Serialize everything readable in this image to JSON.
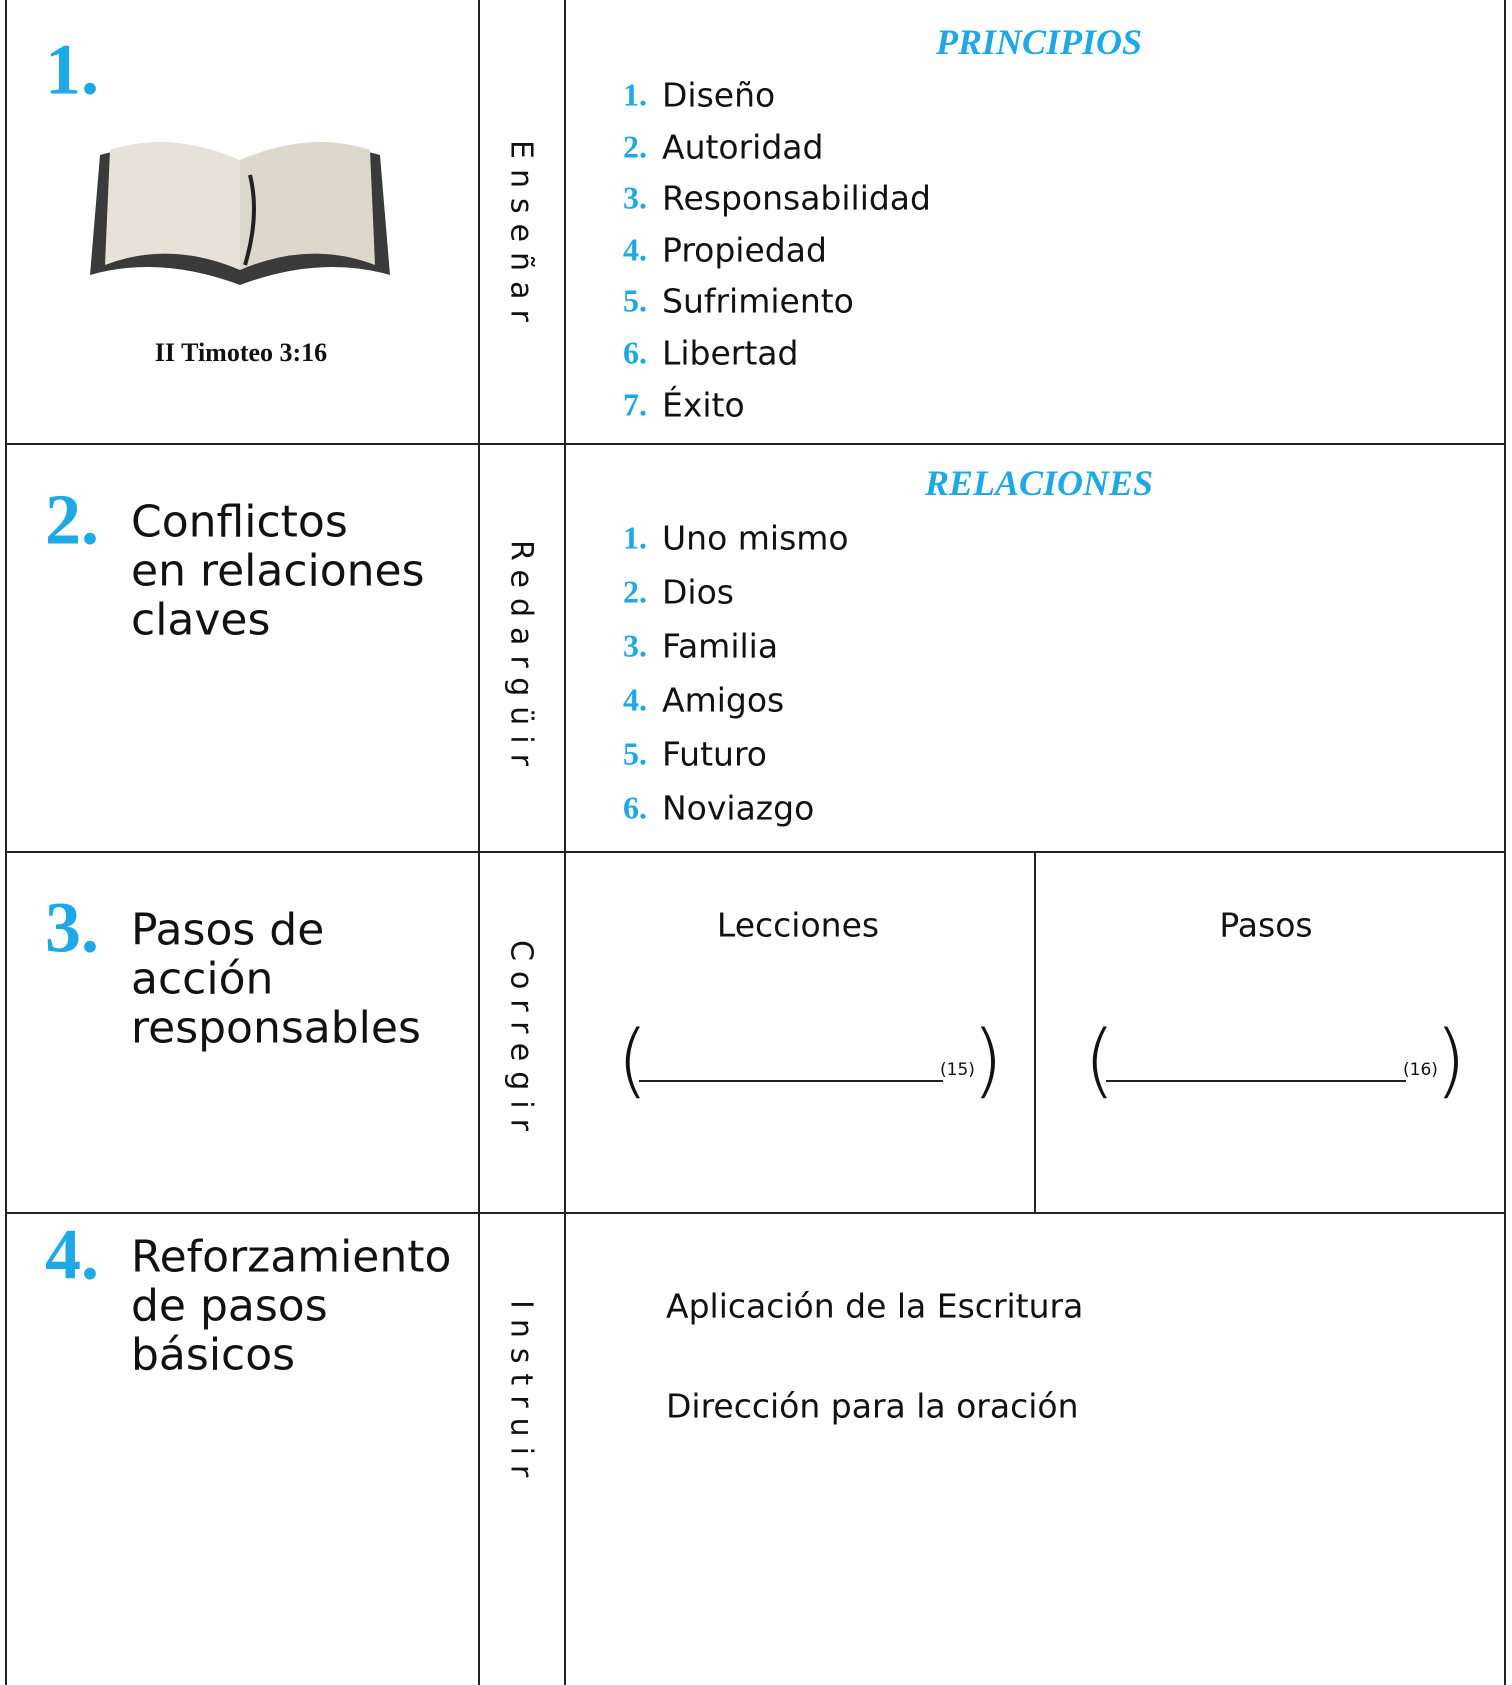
{
  "rows": [
    {
      "number": "1.",
      "caption": "II Timoteo 3:16",
      "verb": "Enseñar",
      "heading": "PRINCIPIOS",
      "items": [
        {
          "number": "1.",
          "text": "Diseño"
        },
        {
          "number": "2.",
          "text": "Autoridad"
        },
        {
          "number": "3.",
          "text": "Responsabilidad"
        },
        {
          "number": "4.",
          "text": "Propiedad"
        },
        {
          "number": "5.",
          "text": "Sufrimiento"
        },
        {
          "number": "6.",
          "text": "Libertad"
        },
        {
          "number": "7.",
          "text": "Éxito"
        }
      ]
    },
    {
      "number": "2.",
      "title": [
        "Conflictos",
        "en relaciones",
        "claves"
      ],
      "verb": "Redargüir",
      "heading": "RELACIONES",
      "items": [
        {
          "number": "1.",
          "text": "Uno mismo"
        },
        {
          "number": "2.",
          "text": "Dios"
        },
        {
          "number": "3.",
          "text": "Familia"
        },
        {
          "number": "4.",
          "text": "Amigos"
        },
        {
          "number": "5.",
          "text": "Futuro"
        },
        {
          "number": "6.",
          "text": "Noviazgo"
        }
      ]
    },
    {
      "number": "3.",
      "title": [
        "Pasos de",
        "acción",
        "responsables"
      ],
      "verb": "Corregir",
      "columns": [
        {
          "heading": "Lecciones",
          "open": "(",
          "note": "(15)",
          "close": ")"
        },
        {
          "heading": "Pasos",
          "open": "(",
          "note": "(16)",
          "close": ")"
        }
      ]
    },
    {
      "number": "4.",
      "title": [
        "Reforzamiento",
        "de pasos",
        "básicos"
      ],
      "verb": "Instruir",
      "lines": [
        "Aplicación de la Escritura",
        "Dirección para la oración"
      ]
    }
  ]
}
